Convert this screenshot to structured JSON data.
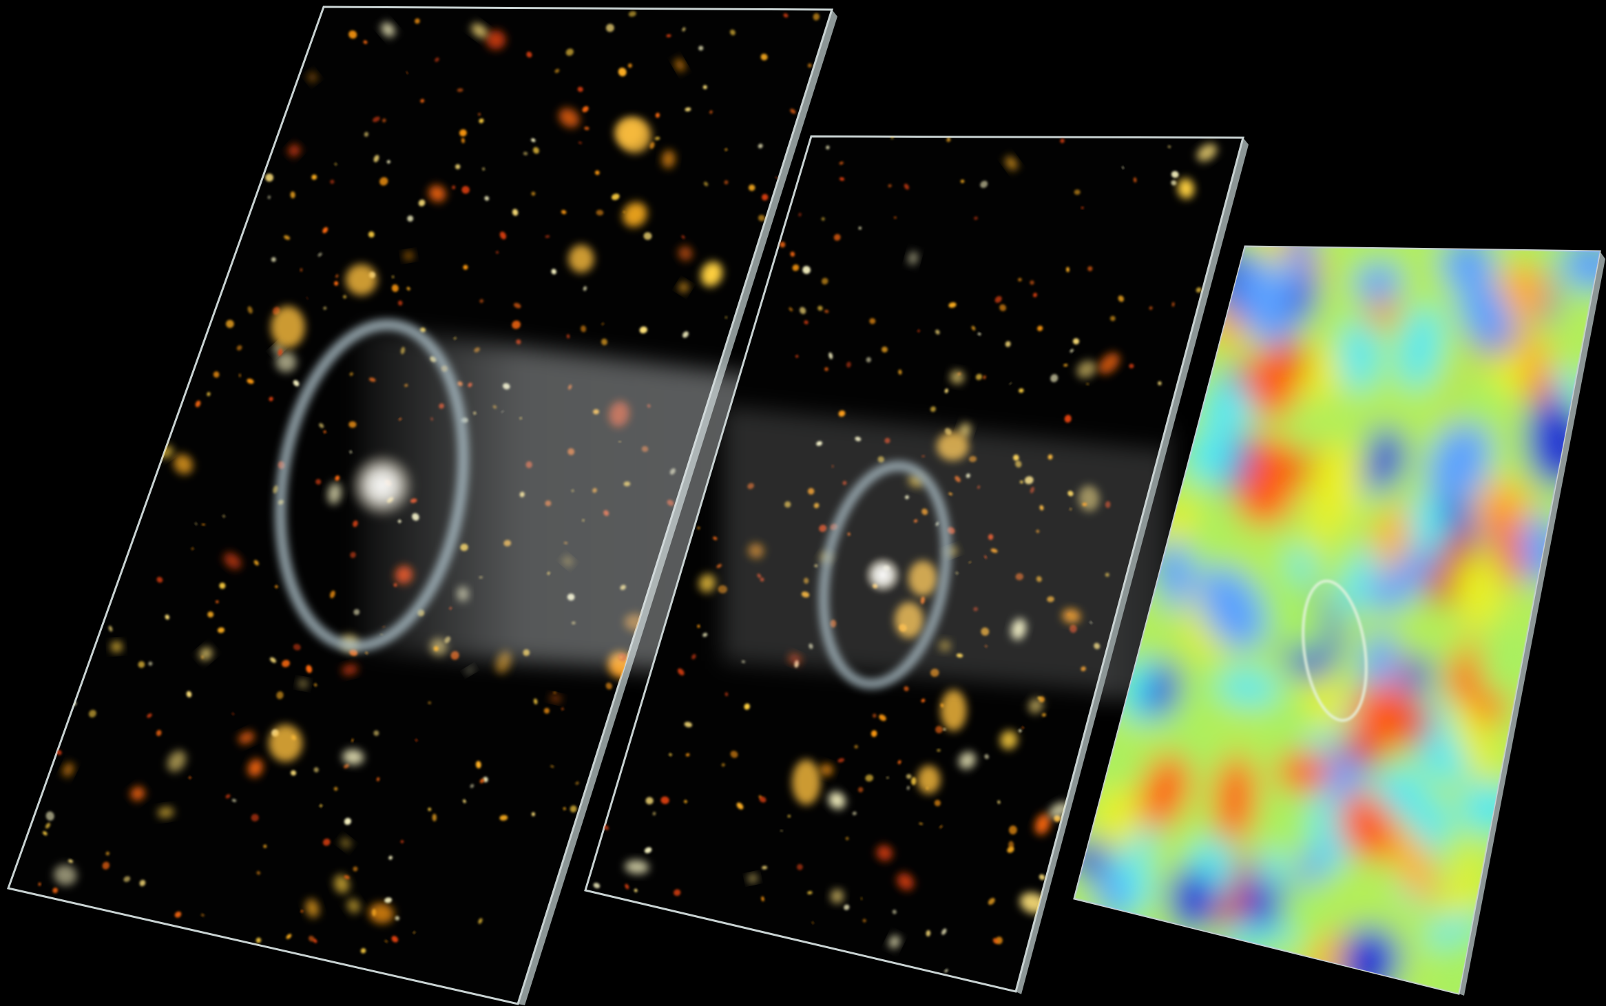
{
  "scene": {
    "background_color": "#000000",
    "panel_edge_color": "#c8d2d2",
    "beam_color": "#d7dde0",
    "ring_color": "#a9bcc4",
    "galaxy_colors": [
      "#ffb020",
      "#ff9a10",
      "#ffd040",
      "#ff6a10",
      "#ffe27a",
      "#e04010",
      "#f4f0c0"
    ],
    "heatmap_palette": [
      "#1f2fd8",
      "#5aa0ff",
      "#54e8f0",
      "#a8f060",
      "#e8f020",
      "#ffb010",
      "#ff5a10",
      "#d8200c"
    ],
    "panels": [
      {
        "name": "foreground-galaxy-field-panel",
        "content": "starfield"
      },
      {
        "name": "background-galaxy-field-panel",
        "content": "starfield"
      },
      {
        "name": "cmb-temperature-map-panel",
        "content": "heatmap"
      }
    ]
  }
}
